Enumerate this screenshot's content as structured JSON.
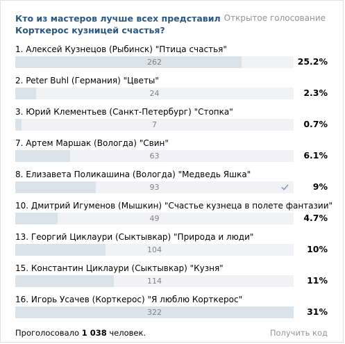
{
  "poll": {
    "question": "Кто из мастеров лучше всех представил Корткерос кузницей счастья?",
    "type_label": "Открытое голосование",
    "options": [
      {
        "label": "1. Алексей Кузнецов (Рыбинск) \"Птица счастья\"",
        "count": "262",
        "percent": "25.2%",
        "share": 0.812,
        "voted": false
      },
      {
        "label": "2. Peter Buhl (Германия) \"Цветы\"",
        "count": "24",
        "percent": "2.3%",
        "share": 0.074,
        "voted": false
      },
      {
        "label": "3. Юрий Клементьев (Санкт-Петербург) \"Стопка\"",
        "count": "7",
        "percent": "0.7%",
        "share": 0.022,
        "voted": false
      },
      {
        "label": "7. Артем Маршак (Вологда) \"Свин\"",
        "count": "63",
        "percent": "6.1%",
        "share": 0.196,
        "voted": false
      },
      {
        "label": "8. Елизавета Поликашина (Вологда) \"Медведь Яшка\"",
        "count": "93",
        "percent": "9%",
        "share": 0.289,
        "voted": true
      },
      {
        "label": "10. Дмитрий Игуменов (Мышкин) \"Счастье кузнеца в полете фантазии\"",
        "count": "49",
        "percent": "4.7%",
        "share": 0.152,
        "voted": false
      },
      {
        "label": "13. Георгий Циклаури (Сыктывкар) \"Природа и люди\"",
        "count": "104",
        "percent": "10%",
        "share": 0.323,
        "voted": false
      },
      {
        "label": "15. Константин Циклаури (Сыктывкар) \"Кузня\"",
        "count": "114",
        "percent": "11%",
        "share": 0.355,
        "voted": false
      },
      {
        "label": "16. Игорь Усачев (Корткерос) \"Я люблю Корткерос\"",
        "count": "322",
        "percent": "31%",
        "share": 1.0,
        "voted": false
      }
    ],
    "footer": {
      "voted_prefix": "Проголосовало ",
      "voted_count": "1 038",
      "voted_suffix": " человек.",
      "get_code": "Получить код"
    }
  }
}
